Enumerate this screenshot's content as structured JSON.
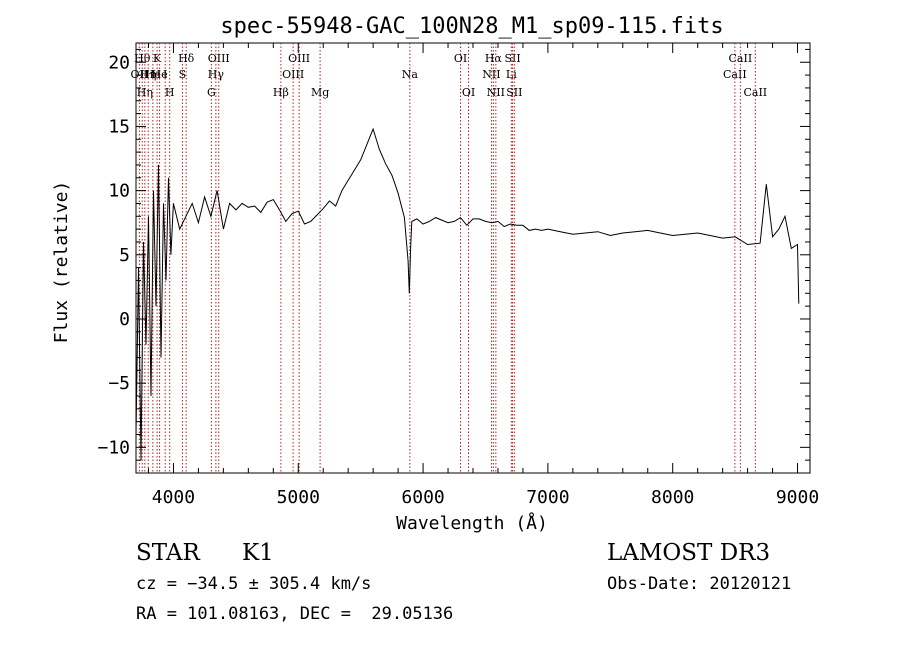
{
  "chart_data": {
    "type": "line",
    "title": "spec-55948-GAC_100N28_M1_sp09-115.fits",
    "xlabel": "Wavelength (Å)",
    "ylabel": "Flux (relative)",
    "xlim": [
      3700,
      9100
    ],
    "ylim": [
      -12,
      21.5
    ],
    "x_ticks": [
      4000,
      5000,
      6000,
      7000,
      8000,
      9000
    ],
    "y_ticks": [
      -10,
      -5,
      0,
      5,
      10,
      15,
      20
    ],
    "x_tick_labels": [
      "4000",
      "5000",
      "6000",
      "7000",
      "8000",
      "9000"
    ],
    "y_tick_labels": [
      "−10",
      "−5",
      "0",
      "5",
      "10",
      "15",
      "20"
    ],
    "series": [
      {
        "name": "flux",
        "x": [
          3700,
          3720,
          3740,
          3760,
          3780,
          3800,
          3820,
          3840,
          3860,
          3880,
          3900,
          3920,
          3940,
          3960,
          3980,
          4000,
          4050,
          4100,
          4150,
          4200,
          4250,
          4300,
          4350,
          4400,
          4450,
          4500,
          4550,
          4600,
          4650,
          4700,
          4750,
          4800,
          4850,
          4900,
          4950,
          5000,
          5050,
          5100,
          5150,
          5200,
          5250,
          5300,
          5350,
          5400,
          5450,
          5500,
          5550,
          5600,
          5650,
          5700,
          5750,
          5800,
          5850,
          5880,
          5890,
          5900,
          5910,
          5950,
          6000,
          6050,
          6100,
          6150,
          6200,
          6250,
          6300,
          6350,
          6400,
          6450,
          6500,
          6550,
          6600,
          6650,
          6700,
          6750,
          6800,
          6850,
          6900,
          6950,
          7000,
          7100,
          7200,
          7300,
          7400,
          7500,
          7600,
          7700,
          7800,
          7900,
          8000,
          8100,
          8200,
          8300,
          8400,
          8500,
          8600,
          8700,
          8750,
          8800,
          8850,
          8900,
          8950,
          9000,
          9010
        ],
        "y": [
          -9,
          4,
          -11,
          6,
          -2,
          8,
          -6,
          10,
          1,
          12,
          -3,
          9,
          3,
          11,
          5,
          9,
          7,
          8,
          9,
          7.5,
          9.5,
          8,
          10,
          7,
          9,
          8.5,
          9,
          8.7,
          8.8,
          8.3,
          9.1,
          9.3,
          8.5,
          7.6,
          8.2,
          8.4,
          7.4,
          7.6,
          8.1,
          8.6,
          9.2,
          8.8,
          10,
          10.8,
          11.6,
          12.4,
          13.6,
          14.8,
          13.2,
          12.1,
          11.2,
          9.8,
          7.9,
          4.5,
          2,
          5.5,
          7.6,
          7.8,
          7.4,
          7.6,
          7.9,
          7.7,
          7.5,
          7.6,
          7.9,
          7.3,
          7.8,
          7.8,
          7.6,
          7.5,
          7.6,
          7.2,
          7.4,
          7.3,
          7.3,
          6.9,
          7,
          6.9,
          7,
          6.8,
          6.6,
          6.7,
          6.8,
          6.5,
          6.7,
          6.8,
          6.9,
          6.7,
          6.5,
          6.6,
          6.7,
          6.5,
          6.3,
          6.4,
          5.8,
          5.9,
          10.5,
          6.4,
          7,
          8,
          5.5,
          5.8,
          1.2
        ]
      }
    ],
    "lines": [
      {
        "w": 3727,
        "label": "OII",
        "row": 2
      },
      {
        "w": 3750,
        "label": "Hθ",
        "row": 1
      },
      {
        "w": 3771,
        "label": "Hη",
        "row": 3
      },
      {
        "w": 3798,
        "label": "Hη",
        "row": 2
      },
      {
        "w": 3835,
        "label": "He",
        "row": 2
      },
      {
        "w": 3869,
        "label": "K",
        "row": 1
      },
      {
        "w": 3889,
        "label": "He",
        "row": 2
      },
      {
        "w": 3934,
        "label": "I",
        "row": 2
      },
      {
        "w": 3970,
        "label": "H",
        "row": 3
      },
      {
        "w": 4072,
        "label": "S",
        "row": 2
      },
      {
        "w": 4102,
        "label": "Hδ",
        "row": 1
      },
      {
        "w": 4304,
        "label": "G",
        "row": 3
      },
      {
        "w": 4340,
        "label": "Hγ",
        "row": 2
      },
      {
        "w": 4363,
        "label": "OIII",
        "row": 1
      },
      {
        "w": 4861,
        "label": "Hβ",
        "row": 3
      },
      {
        "w": 4959,
        "label": "OIII",
        "row": 2
      },
      {
        "w": 5007,
        "label": "OIII",
        "row": 1
      },
      {
        "w": 5175,
        "label": "Mg",
        "row": 3
      },
      {
        "w": 5894,
        "label": "Na",
        "row": 2
      },
      {
        "w": 6300,
        "label": "OI",
        "row": 1
      },
      {
        "w": 6364,
        "label": "OI",
        "row": 3
      },
      {
        "w": 6548,
        "label": "NII",
        "row": 2
      },
      {
        "w": 6563,
        "label": "Hα",
        "row": 1
      },
      {
        "w": 6583,
        "label": "NII",
        "row": 3
      },
      {
        "w": 6707,
        "label": "Li",
        "row": 2
      },
      {
        "w": 6717,
        "label": "SII",
        "row": 1
      },
      {
        "w": 6731,
        "label": "SII",
        "row": 3
      },
      {
        "w": 8498,
        "label": "CaII",
        "row": 2
      },
      {
        "w": 8542,
        "label": "CaII",
        "row": 1
      },
      {
        "w": 8662,
        "label": "CaII",
        "row": 3
      }
    ]
  },
  "info": {
    "class": "STAR",
    "subclass": "K1",
    "cz": "cz = −34.5 ± 305.4 km/s",
    "coords": "RA = 101.08163, DEC =  29.05136",
    "survey": "LAMOST DR3",
    "obsdate": "Obs-Date: 20120121"
  }
}
